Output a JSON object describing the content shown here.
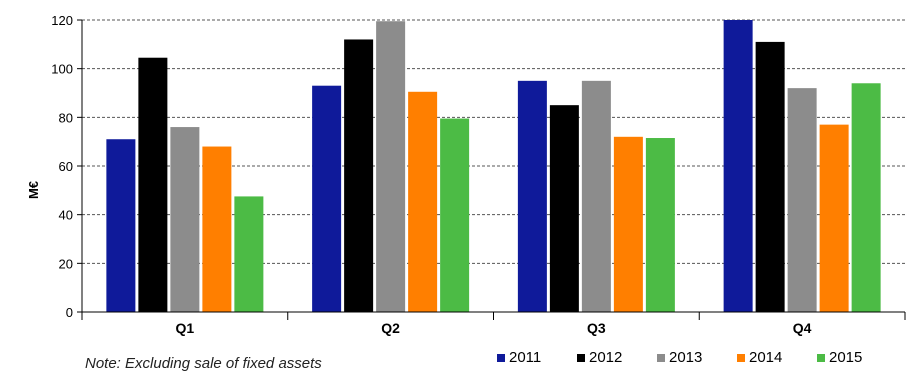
{
  "chart_data": {
    "type": "bar",
    "categories": [
      "Q1",
      "Q2",
      "Q3",
      "Q4"
    ],
    "series": [
      {
        "name": "2011",
        "values": [
          71,
          93,
          95,
          120
        ],
        "color": "#0f1a9a"
      },
      {
        "name": "2012",
        "values": [
          104.5,
          112,
          85,
          111
        ],
        "color": "#000000"
      },
      {
        "name": "2013",
        "values": [
          76,
          119.5,
          95,
          92
        ],
        "color": "#8c8c8c"
      },
      {
        "name": "2014",
        "values": [
          68,
          90.5,
          72,
          77
        ],
        "color": "#ff7f00"
      },
      {
        "name": "2015",
        "values": [
          47.5,
          79.5,
          71.5,
          94
        ],
        "color": "#4cbb45"
      }
    ],
    "ylabel": "M€",
    "ylim": [
      0,
      120
    ],
    "yticks": [
      0,
      20,
      40,
      60,
      80,
      100,
      120
    ],
    "grid": true,
    "legend_position": "bottom-right"
  },
  "note": "Note: Excluding sale of fixed assets"
}
